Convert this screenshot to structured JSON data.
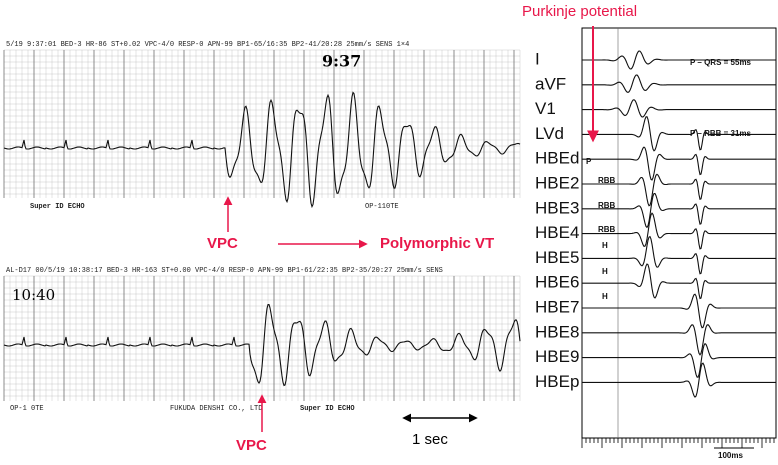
{
  "annotations": {
    "top_label": "Purkinje potential",
    "vpc_top": "VPC",
    "transition": "Polymorphic VT",
    "vpc_bottom": "VPC",
    "scale_left": "1 sec"
  },
  "strips": [
    {
      "header": "5/19  9:37:01  BED-3  HR-86  ST+0.02  VPC-4/0  RESP-0  APN-99  BP1-65/16:35  BP2-41/20:28  25mm/s  SENS  1×4",
      "handwritten": "9:37",
      "footer_left": "Super ID ECHO",
      "footer_right": "OP-110TE"
    },
    {
      "header": "AL-D17  00/5/19  10:38:17  BED-3  HR-163  ST+0.00  VPC-4/0  RESP-0  APN-99  BP1-61/22:35  BP2-35/20:27  25mm/s  SENS",
      "handwritten": "10:40",
      "footer_left": "OP-1 0TE",
      "footer_right": "FUKUDA DENSHI CO., LTD",
      "footer_far": "Super ID ECHO"
    }
  ],
  "panel": {
    "leads": [
      "I",
      "aVF",
      "V1",
      "LVd",
      "HBEd",
      "HBE2",
      "HBE3",
      "HBE4",
      "HBE5",
      "HBE6",
      "HBE7",
      "HBE8",
      "HBE9",
      "HBEp"
    ],
    "intervals": [
      "P – QRS = 55ms",
      "P – RBB = 31ms"
    ],
    "markers": [
      "P",
      "RBB",
      "RBB",
      "RBB",
      "H",
      "H",
      "H"
    ],
    "scale": "100ms"
  }
}
